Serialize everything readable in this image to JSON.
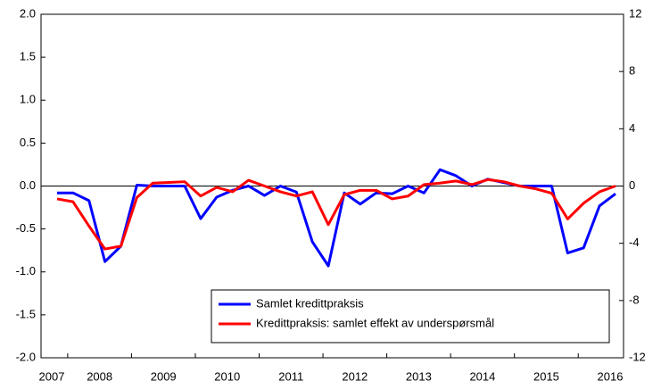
{
  "chart_data": {
    "type": "line",
    "categories": [
      "2007",
      null,
      null,
      "2008",
      null,
      null,
      null,
      "2009",
      null,
      null,
      null,
      "2010",
      null,
      null,
      null,
      "2011",
      null,
      null,
      null,
      "2012",
      null,
      null,
      null,
      "2013",
      null,
      null,
      null,
      "2014",
      null,
      null,
      null,
      "2015",
      null,
      null,
      null,
      "2016"
    ],
    "series": [
      {
        "name": "Samlet kredittpraksis",
        "color": "#0000ff",
        "axis": "y",
        "values": [
          -0.08,
          -0.08,
          -0.17,
          -0.88,
          -0.7,
          0.01,
          0.0,
          0.0,
          0.0,
          -0.38,
          -0.13,
          -0.05,
          0.0,
          -0.11,
          0.0,
          -0.07,
          -0.65,
          -0.93,
          -0.08,
          -0.21,
          -0.08,
          -0.09,
          0.0,
          -0.08,
          0.19,
          0.12,
          0.0,
          0.08,
          0.04,
          0.0,
          0.0,
          0.0,
          -0.78,
          -0.72,
          -0.23,
          -0.09
        ]
      },
      {
        "name": "Kredittpraksis: samlet effekt av underspørsmål",
        "color": "#ff0000",
        "axis": "y2",
        "values": [
          -0.9,
          -1.1,
          -2.8,
          -4.4,
          -4.2,
          -0.8,
          0.2,
          0.25,
          0.3,
          -0.7,
          -0.1,
          -0.4,
          0.4,
          0.0,
          -0.4,
          -0.7,
          -0.4,
          -2.7,
          -0.6,
          -0.3,
          -0.3,
          -0.9,
          -0.7,
          0.1,
          0.2,
          0.35,
          0.1,
          0.45,
          0.3,
          0.0,
          -0.2,
          -0.5,
          -2.3,
          -1.2,
          -0.4,
          0.0
        ]
      }
    ],
    "ylim": [
      -2.0,
      2.0
    ],
    "yticks": [
      {
        "value": 2.0,
        "label": "2.0"
      },
      {
        "value": 1.5,
        "label": "1.5"
      },
      {
        "value": 1.0,
        "label": "1.0"
      },
      {
        "value": 0.5,
        "label": "0.5"
      },
      {
        "value": 0.0,
        "label": "0.0"
      },
      {
        "value": -0.5,
        "label": "-0.5"
      },
      {
        "value": -1.0,
        "label": "-1.0"
      },
      {
        "value": -1.5,
        "label": "-1.5"
      },
      {
        "value": -2.0,
        "label": "-2.0"
      }
    ],
    "y2lim": [
      -12,
      12
    ],
    "y2ticks": [
      12,
      8,
      4,
      0,
      -4,
      -8,
      -12
    ],
    "legend": "lower-right"
  }
}
